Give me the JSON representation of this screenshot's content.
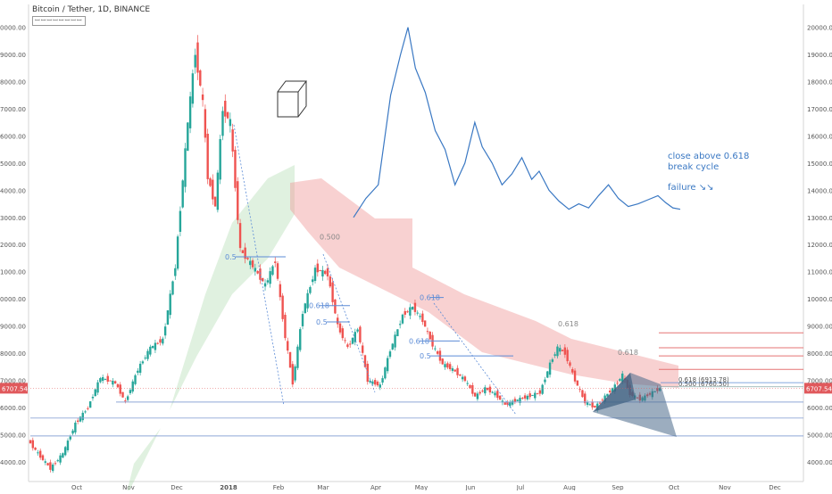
{
  "header": {
    "symbol": "Bitcoin / Tether, 1D, BINANCE",
    "indicator": "ꟷꟷꟷꟷꟷꟷꟷꟷ"
  },
  "chart_data": {
    "type": "candlestick",
    "y_ticks": [
      4000,
      5000,
      6000,
      7000,
      8000,
      9000,
      10000,
      11000,
      12000,
      13000,
      14000,
      15000,
      16000,
      17000,
      18000,
      19000,
      20000
    ],
    "ylim": [
      3600,
      20350
    ],
    "x_labels": [
      "Oct",
      "Nov",
      "Dec",
      "2018",
      "Feb",
      "Mar",
      "Apr",
      "May",
      "Jun",
      "Jul",
      "Aug",
      "Sep",
      "Oct",
      "Nov",
      "Dec"
    ],
    "price_path": [
      [
        0,
        4800
      ],
      [
        8,
        4300
      ],
      [
        18,
        3750
      ],
      [
        28,
        4300
      ],
      [
        38,
        5400
      ],
      [
        48,
        6000
      ],
      [
        58,
        7100
      ],
      [
        70,
        6900
      ],
      [
        78,
        6200
      ],
      [
        88,
        7400
      ],
      [
        98,
        8200
      ],
      [
        108,
        8500
      ],
      [
        118,
        11200
      ],
      [
        128,
        16500
      ],
      [
        134,
        19100
      ],
      [
        140,
        17200
      ],
      [
        144,
        14500
      ],
      [
        150,
        13400
      ],
      [
        156,
        17000
      ],
      [
        162,
        16500
      ],
      [
        170,
        11800
      ],
      [
        180,
        11200
      ],
      [
        190,
        10500
      ],
      [
        198,
        11400
      ],
      [
        206,
        8600
      ],
      [
        212,
        6900
      ],
      [
        220,
        9500
      ],
      [
        230,
        11100
      ],
      [
        240,
        10900
      ],
      [
        248,
        9000
      ],
      [
        256,
        8200
      ],
      [
        264,
        8900
      ],
      [
        272,
        7000
      ],
      [
        282,
        6800
      ],
      [
        290,
        8100
      ],
      [
        300,
        9400
      ],
      [
        308,
        9700
      ],
      [
        316,
        9200
      ],
      [
        324,
        8300
      ],
      [
        332,
        7600
      ],
      [
        340,
        7400
      ],
      [
        350,
        7000
      ],
      [
        358,
        6400
      ],
      [
        366,
        6700
      ],
      [
        374,
        6500
      ],
      [
        382,
        6100
      ],
      [
        390,
        6250
      ],
      [
        400,
        6400
      ],
      [
        410,
        6550
      ],
      [
        418,
        7600
      ],
      [
        424,
        8200
      ],
      [
        430,
        8000
      ],
      [
        438,
        7000
      ],
      [
        446,
        6200
      ],
      [
        454,
        6000
      ],
      [
        462,
        6400
      ],
      [
        470,
        6800
      ],
      [
        476,
        7200
      ],
      [
        482,
        6500
      ],
      [
        490,
        6300
      ],
      [
        498,
        6500
      ],
      [
        506,
        6700
      ]
    ],
    "price_label": "6707.54",
    "fib_right": [
      {
        "label": "0.618 (6913.78)",
        "value": 6913.78
      },
      {
        "label": "0.500 (6760.50)",
        "value": 6760.5
      }
    ],
    "fib_annotations": [
      {
        "label": "0.5",
        "value": 11550
      },
      {
        "label": "0.500",
        "value": 12050
      },
      {
        "label": "0.618",
        "value": 9750
      },
      {
        "label": "0.5",
        "value": 9150
      },
      {
        "label": "0.618",
        "value": 10050
      },
      {
        "label": "0.618",
        "value": 8450
      },
      {
        "label": "0.5",
        "value": 7900
      },
      {
        "label": "0.618",
        "value": 8850
      },
      {
        "label": "0.618",
        "value": 7800
      }
    ],
    "red_levels": [
      8750,
      8200,
      7900,
      7400
    ],
    "blue_levels": [
      6200,
      4950
    ],
    "annotation_lines": [
      "close above 0.618",
      "break cycle"
    ],
    "failure_text": "failure ↘↘",
    "overlay_path": [
      [
        0,
        13000
      ],
      [
        10,
        13700
      ],
      [
        20,
        14200
      ],
      [
        30,
        17500
      ],
      [
        38,
        19000
      ],
      [
        44,
        20000
      ],
      [
        50,
        18500
      ],
      [
        58,
        17600
      ],
      [
        66,
        16200
      ],
      [
        74,
        15500
      ],
      [
        82,
        14200
      ],
      [
        90,
        15000
      ],
      [
        98,
        16500
      ],
      [
        104,
        15600
      ],
      [
        112,
        15000
      ],
      [
        120,
        14200
      ],
      [
        128,
        14600
      ],
      [
        136,
        15200
      ],
      [
        144,
        14400
      ],
      [
        150,
        14700
      ],
      [
        158,
        14000
      ],
      [
        166,
        13600
      ],
      [
        174,
        13300
      ],
      [
        182,
        13500
      ],
      [
        190,
        13350
      ],
      [
        198,
        13800
      ],
      [
        206,
        14200
      ],
      [
        214,
        13700
      ],
      [
        222,
        13400
      ],
      [
        230,
        13500
      ],
      [
        238,
        13650
      ],
      [
        246,
        13800
      ],
      [
        252,
        13550
      ],
      [
        258,
        13350
      ],
      [
        264,
        13300
      ]
    ]
  },
  "colors": {
    "up": "#26a69a",
    "down": "#ef5350",
    "up_cloud": "#a5d6a7",
    "down_cloud": "#ef9a9a",
    "fib_blue": "#5b8bd6",
    "red_line": "#e57373",
    "overlay": "#3a78c3",
    "price_tag": "#e0595c"
  }
}
